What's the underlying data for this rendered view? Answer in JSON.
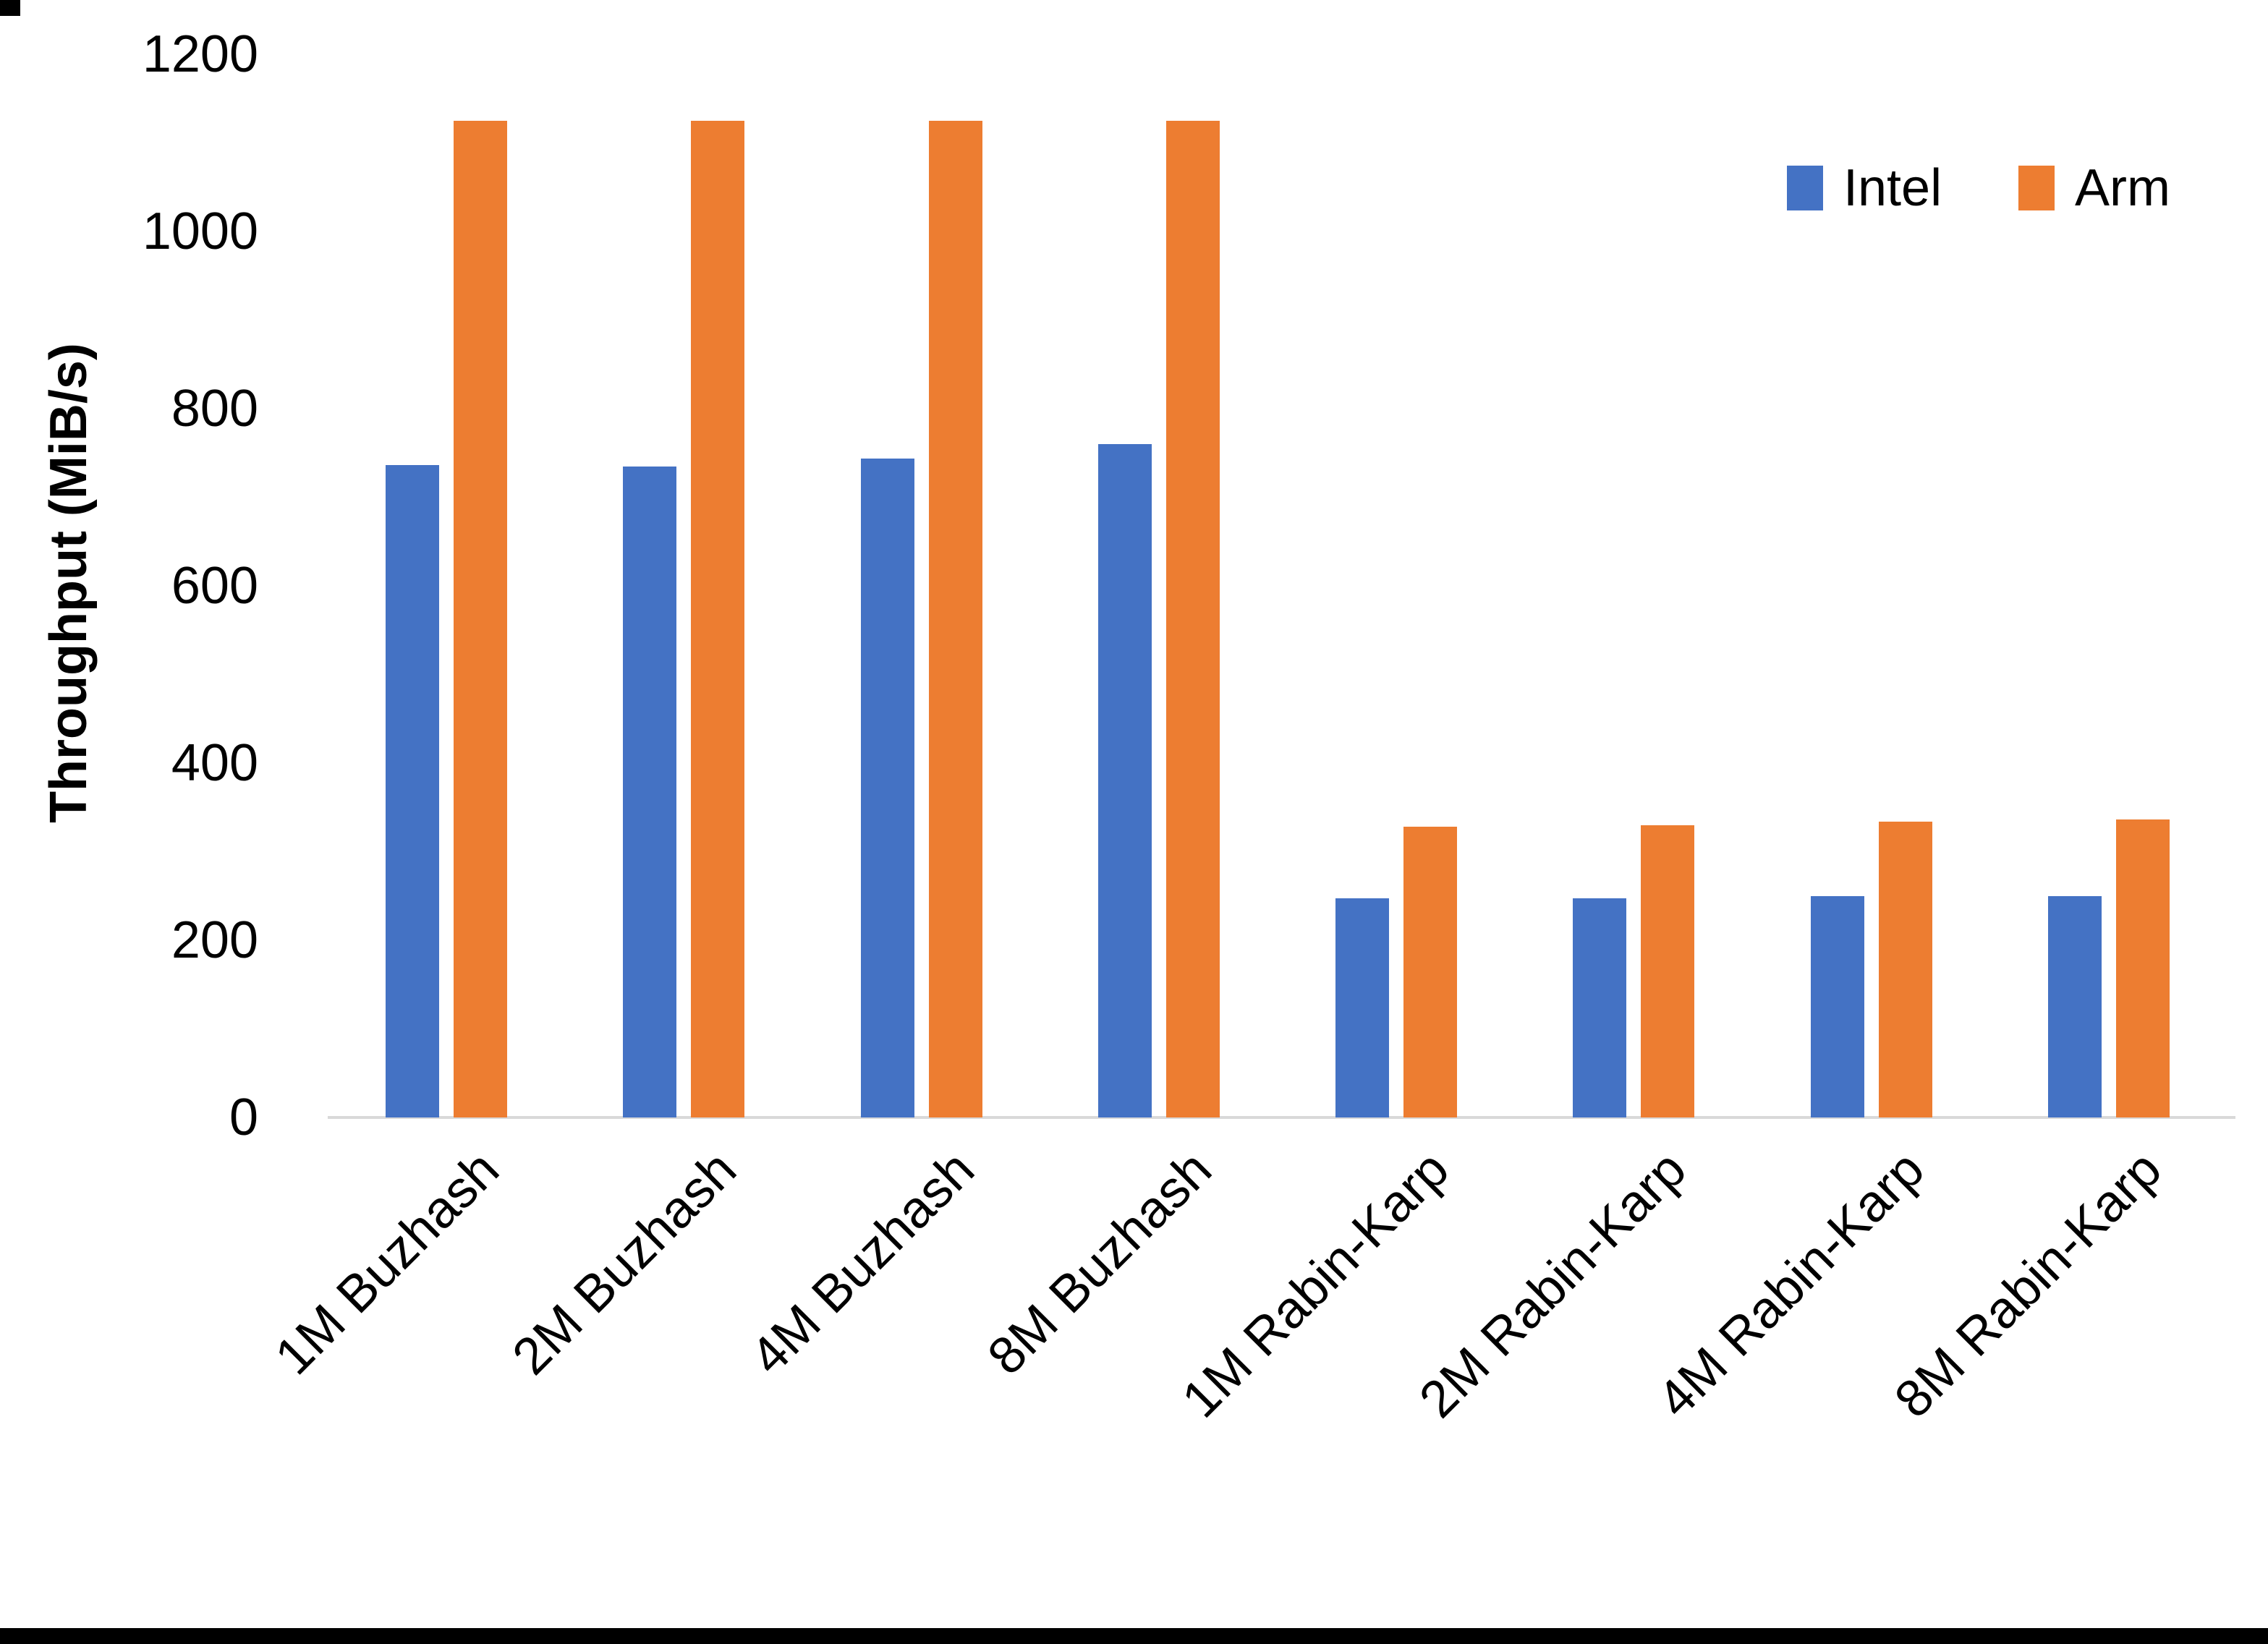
{
  "chart_data": {
    "type": "bar",
    "title": "",
    "xlabel": "",
    "ylabel": "Throughput (MiB/s)",
    "ylim": [
      0,
      1200
    ],
    "yticks": [
      0,
      200,
      400,
      600,
      800,
      1000,
      1200
    ],
    "grid": false,
    "legend_position": "top-right",
    "categories": [
      "1M Buzhash",
      "2M Buzhash",
      "4M Buzhash",
      "8M Buzhash",
      "1M Rabin-Karp",
      "2M Rabin-Karp",
      "4M Rabin-Karp",
      "8M Rabin-Karp"
    ],
    "series": [
      {
        "name": "Intel",
        "color": "#4472C4",
        "values": [
          736,
          735,
          744,
          760,
          247,
          247,
          250,
          250
        ]
      },
      {
        "name": "Arm",
        "color": "#ED7D31",
        "values": [
          1125,
          1125,
          1125,
          1125,
          328,
          330,
          334,
          336
        ]
      }
    ]
  }
}
